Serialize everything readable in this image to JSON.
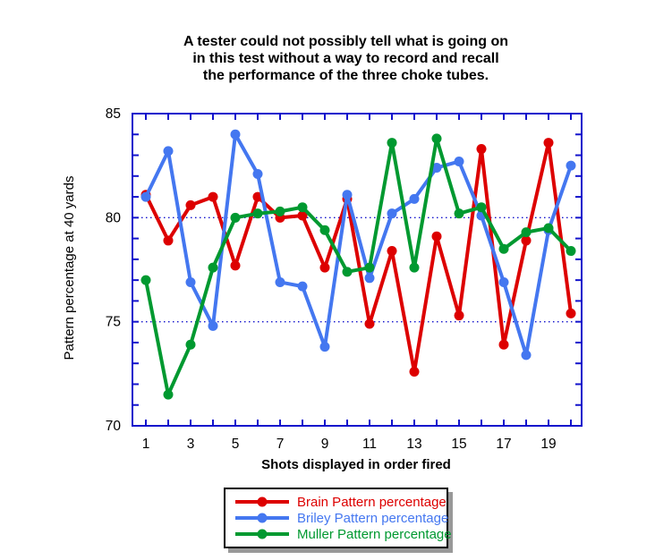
{
  "title": {
    "line1": "A tester could not possibly tell what is going on",
    "line2": "in this test without a way to record and recall",
    "line3": "the performance of the three choke tubes."
  },
  "axes": {
    "y_label": "Pattern percentage at 40 yards",
    "x_label": "Shots displayed in order fired"
  },
  "chart_data": {
    "type": "line",
    "x": [
      1,
      2,
      3,
      4,
      5,
      6,
      7,
      8,
      9,
      10,
      11,
      12,
      13,
      14,
      15,
      16,
      17,
      18,
      19,
      20
    ],
    "series": [
      {
        "name": "Brain Pattern percentage",
        "color": "#dd0000",
        "values": [
          81.1,
          78.9,
          80.6,
          81.0,
          77.7,
          81.0,
          80.0,
          80.1,
          77.6,
          80.9,
          74.9,
          78.4,
          72.6,
          79.1,
          75.3,
          83.3,
          73.9,
          78.9,
          83.6,
          75.4
        ]
      },
      {
        "name": "Briley Pattern percentage",
        "color": "#4477f0",
        "values": [
          81.0,
          83.2,
          76.9,
          74.8,
          84.0,
          82.1,
          76.9,
          76.7,
          73.8,
          81.1,
          77.1,
          80.2,
          80.9,
          82.4,
          82.7,
          80.1,
          76.9,
          73.4,
          79.4,
          82.5
        ]
      },
      {
        "name": "Muller Pattern percentage",
        "color": "#009930",
        "values": [
          77.0,
          71.5,
          73.9,
          77.6,
          80.0,
          80.2,
          80.3,
          80.5,
          79.4,
          77.4,
          77.6,
          83.6,
          77.6,
          83.8,
          80.2,
          80.5,
          78.5,
          79.3,
          79.5,
          78.4
        ]
      }
    ],
    "ylim": [
      70,
      85
    ],
    "yticks": [
      70,
      75,
      80,
      85
    ],
    "xticks": [
      1,
      3,
      5,
      7,
      9,
      11,
      13,
      15,
      17,
      19
    ],
    "gridlines_y": [
      75,
      80
    ],
    "axis_color": "#1212cc",
    "tick_label_color": "#000000",
    "grid": "dotted horizontal at 75 and 80",
    "legend_position": "bottom"
  }
}
